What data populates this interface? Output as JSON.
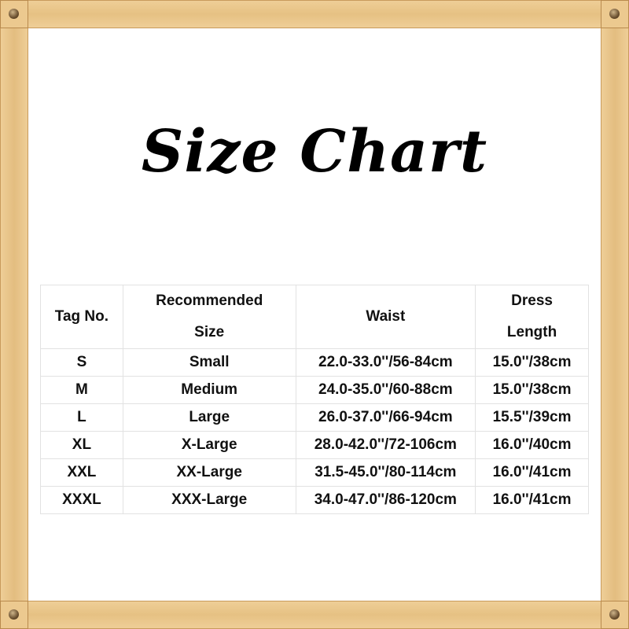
{
  "title": "Size Chart",
  "table": {
    "headers": [
      [
        "Tag No."
      ],
      [
        "Recommended",
        "Size"
      ],
      [
        "Waist"
      ],
      [
        "Dress",
        "Length"
      ]
    ],
    "rows": [
      [
        "S",
        "Small",
        "22.0-33.0''/56-84cm",
        "15.0''/38cm"
      ],
      [
        "M",
        "Medium",
        "24.0-35.0''/60-88cm",
        "15.0''/38cm"
      ],
      [
        "L",
        "Large",
        "26.0-37.0''/66-94cm",
        "15.5''/39cm"
      ],
      [
        "XL",
        "X-Large",
        "28.0-42.0''/72-106cm",
        "16.0''/40cm"
      ],
      [
        "XXL",
        "XX-Large",
        "31.5-45.0''/80-114cm",
        "16.0''/41cm"
      ],
      [
        "XXXL",
        "XXX-Large",
        "34.0-47.0''/86-120cm",
        "16.0''/41cm"
      ]
    ]
  },
  "colors": {
    "frame_wood": "#e8c487",
    "nail": "#5a4328"
  }
}
